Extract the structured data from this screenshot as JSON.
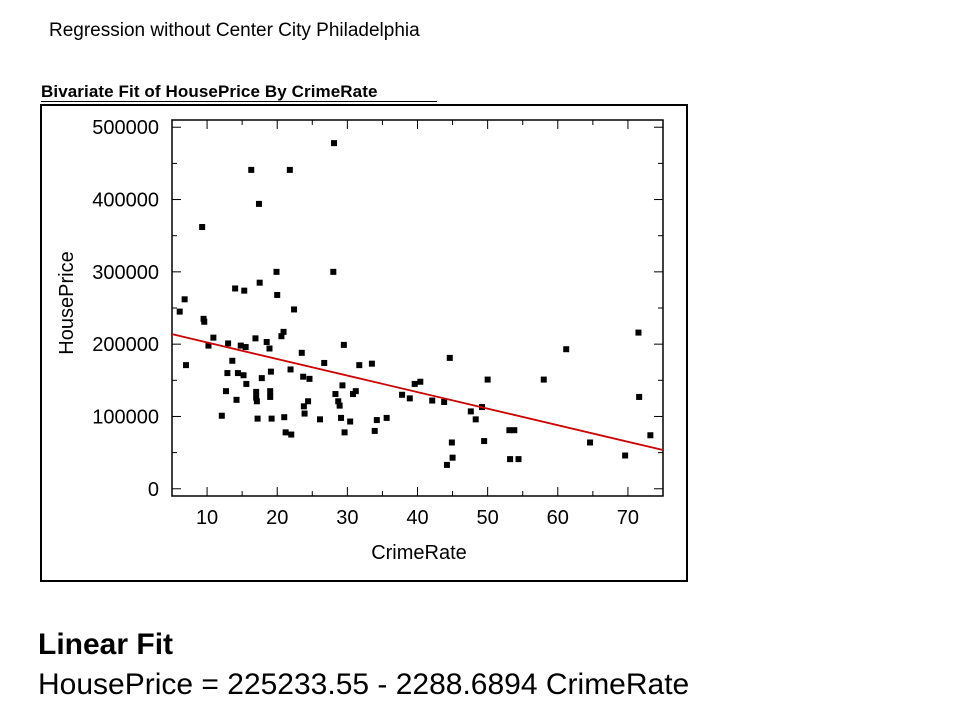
{
  "slide": {
    "title": "Regression without Center City Philadelphia"
  },
  "panel": {
    "title": "Bivariate Fit of HousePrice By CrimeRate"
  },
  "linear_fit": {
    "heading": "Linear Fit",
    "equation": "HousePrice = 225233.55 - 2288.6894 CrimeRate"
  },
  "colors": {
    "points": "#000000",
    "fit_line": "#cc0000",
    "axes": "#000000"
  },
  "chart_data": {
    "type": "scatter",
    "title": "Bivariate Fit of HousePrice By CrimeRate",
    "xlabel": "CrimeRate",
    "ylabel": "HousePrice",
    "xlim": [
      5,
      75
    ],
    "ylim": [
      -10000,
      510000
    ],
    "xticks": [
      10,
      20,
      30,
      40,
      50,
      60,
      70
    ],
    "yticks": [
      0,
      100000,
      200000,
      300000,
      400000,
      500000
    ],
    "xtick_labels": [
      "10",
      "20",
      "30",
      "40",
      "50",
      "60",
      "70"
    ],
    "ytick_labels": [
      "0",
      "100000",
      "200000",
      "300000",
      "400000",
      "500000"
    ],
    "grid": false,
    "fit_line": {
      "intercept": 225233.55,
      "slope": -2288.6894,
      "x_range": [
        5,
        75
      ]
    },
    "points": [
      {
        "x": 6.1,
        "y": 245000
      },
      {
        "x": 6.8,
        "y": 262000
      },
      {
        "x": 7.0,
        "y": 171000
      },
      {
        "x": 9.3,
        "y": 362000
      },
      {
        "x": 9.5,
        "y": 235000
      },
      {
        "x": 9.6,
        "y": 231000
      },
      {
        "x": 10.2,
        "y": 198000
      },
      {
        "x": 10.9,
        "y": 209000
      },
      {
        "x": 12.1,
        "y": 101000
      },
      {
        "x": 12.7,
        "y": 135000
      },
      {
        "x": 12.9,
        "y": 160000
      },
      {
        "x": 13.0,
        "y": 201000
      },
      {
        "x": 13.6,
        "y": 177000
      },
      {
        "x": 14.0,
        "y": 277000
      },
      {
        "x": 14.2,
        "y": 123000
      },
      {
        "x": 14.4,
        "y": 160000
      },
      {
        "x": 14.8,
        "y": 198000
      },
      {
        "x": 15.2,
        "y": 157000
      },
      {
        "x": 15.3,
        "y": 274000
      },
      {
        "x": 15.5,
        "y": 196000
      },
      {
        "x": 15.6,
        "y": 145000
      },
      {
        "x": 16.3,
        "y": 441000
      },
      {
        "x": 16.9,
        "y": 208000
      },
      {
        "x": 17.0,
        "y": 134000
      },
      {
        "x": 17.0,
        "y": 126000
      },
      {
        "x": 17.1,
        "y": 121000
      },
      {
        "x": 17.2,
        "y": 97000
      },
      {
        "x": 17.4,
        "y": 394000
      },
      {
        "x": 17.5,
        "y": 285000
      },
      {
        "x": 17.8,
        "y": 153000
      },
      {
        "x": 18.5,
        "y": 203000
      },
      {
        "x": 18.9,
        "y": 194000
      },
      {
        "x": 19.0,
        "y": 135000
      },
      {
        "x": 19.0,
        "y": 127000
      },
      {
        "x": 19.1,
        "y": 162000
      },
      {
        "x": 19.2,
        "y": 97000
      },
      {
        "x": 19.9,
        "y": 300000
      },
      {
        "x": 20.0,
        "y": 268000
      },
      {
        "x": 20.6,
        "y": 211000
      },
      {
        "x": 20.9,
        "y": 217000
      },
      {
        "x": 21.0,
        "y": 99000
      },
      {
        "x": 21.2,
        "y": 78000
      },
      {
        "x": 21.8,
        "y": 441000
      },
      {
        "x": 21.9,
        "y": 165000
      },
      {
        "x": 22.0,
        "y": 75000
      },
      {
        "x": 22.4,
        "y": 248000
      },
      {
        "x": 23.5,
        "y": 188000
      },
      {
        "x": 23.7,
        "y": 155000
      },
      {
        "x": 23.8,
        "y": 114000
      },
      {
        "x": 23.9,
        "y": 104000
      },
      {
        "x": 24.4,
        "y": 121000
      },
      {
        "x": 24.6,
        "y": 152000
      },
      {
        "x": 26.1,
        "y": 96000
      },
      {
        "x": 26.7,
        "y": 174000
      },
      {
        "x": 28.0,
        "y": 300000
      },
      {
        "x": 28.1,
        "y": 478000
      },
      {
        "x": 28.3,
        "y": 131000
      },
      {
        "x": 28.7,
        "y": 121000
      },
      {
        "x": 28.9,
        "y": 115000
      },
      {
        "x": 29.1,
        "y": 98000
      },
      {
        "x": 29.3,
        "y": 143000
      },
      {
        "x": 29.5,
        "y": 199000
      },
      {
        "x": 29.6,
        "y": 78000
      },
      {
        "x": 30.4,
        "y": 93000
      },
      {
        "x": 30.8,
        "y": 131000
      },
      {
        "x": 31.2,
        "y": 135000
      },
      {
        "x": 31.7,
        "y": 171000
      },
      {
        "x": 33.5,
        "y": 173000
      },
      {
        "x": 33.9,
        "y": 80000
      },
      {
        "x": 34.2,
        "y": 95000
      },
      {
        "x": 35.6,
        "y": 98000
      },
      {
        "x": 37.8,
        "y": 130000
      },
      {
        "x": 38.9,
        "y": 125000
      },
      {
        "x": 39.6,
        "y": 145000
      },
      {
        "x": 40.4,
        "y": 148000
      },
      {
        "x": 42.1,
        "y": 122000
      },
      {
        "x": 43.8,
        "y": 120000
      },
      {
        "x": 44.2,
        "y": 33000
      },
      {
        "x": 44.6,
        "y": 181000
      },
      {
        "x": 44.9,
        "y": 64000
      },
      {
        "x": 45.0,
        "y": 43000
      },
      {
        "x": 47.6,
        "y": 107000
      },
      {
        "x": 48.3,
        "y": 96000
      },
      {
        "x": 49.2,
        "y": 113000
      },
      {
        "x": 49.5,
        "y": 66000
      },
      {
        "x": 50.0,
        "y": 151000
      },
      {
        "x": 53.1,
        "y": 81000
      },
      {
        "x": 53.2,
        "y": 41000
      },
      {
        "x": 53.8,
        "y": 81000
      },
      {
        "x": 54.4,
        "y": 41000
      },
      {
        "x": 58.0,
        "y": 151000
      },
      {
        "x": 61.2,
        "y": 193000
      },
      {
        "x": 64.6,
        "y": 64000
      },
      {
        "x": 69.6,
        "y": 46000
      },
      {
        "x": 71.5,
        "y": 216000
      },
      {
        "x": 71.6,
        "y": 127000
      },
      {
        "x": 73.2,
        "y": 74000
      }
    ]
  }
}
